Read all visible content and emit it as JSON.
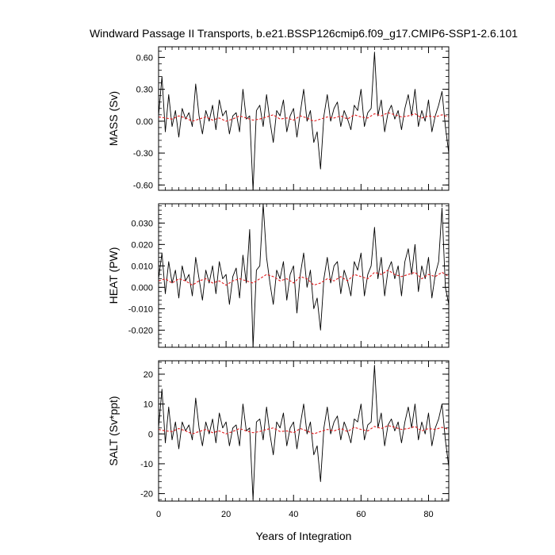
{
  "figure": {
    "title": "Windward Passage II Transports, b.e21.BSSP126cmip6.f09_g17.CMIP6-SSP1-2.6.101",
    "xlabel": "Years of Integration"
  },
  "chart_data": [
    {
      "type": "line",
      "ylabel": "MASS (Sv)",
      "xlim": [
        0,
        86
      ],
      "ylim": [
        -0.65,
        0.7
      ],
      "yticks": [
        "0.60",
        "0.30",
        "0.00",
        "-0.30",
        "-0.60"
      ],
      "ytick_values": [
        0.6,
        0.3,
        0.0,
        -0.3,
        -0.6
      ],
      "xticks": [
        0,
        20,
        40,
        60,
        80
      ],
      "series": [
        {
          "color": "#000000",
          "x": [
            0,
            1,
            2,
            3,
            4,
            5,
            6,
            7,
            8,
            9,
            10,
            11,
            12,
            13,
            14,
            15,
            16,
            17,
            18,
            19,
            20,
            21,
            22,
            23,
            24,
            25,
            26,
            27,
            28,
            29,
            30,
            31,
            32,
            33,
            34,
            35,
            36,
            37,
            38,
            39,
            40,
            41,
            42,
            43,
            44,
            45,
            46,
            47,
            48,
            49,
            50,
            51,
            52,
            53,
            54,
            55,
            56,
            57,
            58,
            59,
            60,
            61,
            62,
            63,
            64,
            65,
            66,
            67,
            68,
            69,
            70,
            71,
            72,
            73,
            74,
            75,
            76,
            77,
            78,
            79,
            80,
            81,
            82,
            83,
            84,
            85,
            86
          ],
          "y": [
            0.05,
            0.42,
            -0.1,
            0.25,
            -0.05,
            0.1,
            -0.15,
            0.12,
            0.02,
            0.08,
            -0.05,
            0.35,
            0.05,
            -0.12,
            0.1,
            0.0,
            0.15,
            -0.08,
            0.2,
            0.05,
            0.1,
            -0.12,
            0.05,
            0.08,
            -0.1,
            0.3,
            0.02,
            0.05,
            -0.65,
            0.1,
            0.15,
            -0.05,
            0.25,
            0.0,
            -0.2,
            0.1,
            0.05,
            0.2,
            -0.1,
            0.05,
            0.12,
            -0.15,
            0.08,
            0.3,
            0.0,
            0.1,
            -0.2,
            -0.1,
            -0.45,
            0.05,
            0.25,
            0.0,
            0.12,
            0.18,
            -0.05,
            0.1,
            0.02,
            -0.08,
            0.15,
            0.1,
            0.3,
            -0.05,
            0.08,
            0.12,
            0.65,
            0.05,
            0.2,
            -0.1,
            0.08,
            0.15,
            0.02,
            0.1,
            -0.08,
            0.12,
            0.25,
            0.05,
            0.3,
            -0.05,
            0.1,
            0.0,
            0.2,
            -0.1,
            0.05,
            0.15,
            0.28,
            -0.05,
            -0.3
          ]
        },
        {
          "color": "#e41a1c",
          "x": [
            0,
            2,
            4,
            6,
            8,
            10,
            12,
            14,
            16,
            18,
            20,
            22,
            24,
            26,
            28,
            30,
            32,
            34,
            36,
            38,
            40,
            42,
            44,
            46,
            48,
            50,
            52,
            54,
            56,
            58,
            60,
            62,
            64,
            66,
            68,
            70,
            72,
            74,
            76,
            78,
            80,
            82,
            84,
            86
          ],
          "y": [
            0.04,
            0.03,
            0.02,
            0.05,
            0.03,
            0.0,
            0.02,
            0.04,
            0.01,
            0.03,
            0.0,
            0.02,
            0.05,
            0.03,
            0.01,
            0.02,
            0.04,
            0.06,
            0.02,
            0.03,
            0.01,
            0.05,
            0.03,
            0.0,
            0.02,
            0.04,
            0.03,
            0.05,
            0.02,
            0.06,
            0.04,
            0.03,
            0.07,
            0.05,
            0.08,
            0.06,
            0.04,
            0.05,
            0.07,
            0.03,
            0.05,
            0.04,
            0.06,
            0.04
          ]
        }
      ]
    },
    {
      "type": "line",
      "ylabel": "HEAT (PW)",
      "xlim": [
        0,
        86
      ],
      "ylim": [
        -0.028,
        0.039
      ],
      "yticks": [
        "0.030",
        "0.020",
        "0.010",
        "0.000",
        "-0.010",
        "-0.020"
      ],
      "ytick_values": [
        0.03,
        0.02,
        0.01,
        0.0,
        -0.01,
        -0.02
      ],
      "xticks": [
        0,
        20,
        40,
        60,
        80
      ],
      "series": [
        {
          "color": "#000000",
          "x": [
            0,
            1,
            2,
            3,
            4,
            5,
            6,
            7,
            8,
            9,
            10,
            11,
            12,
            13,
            14,
            15,
            16,
            17,
            18,
            19,
            20,
            21,
            22,
            23,
            24,
            25,
            26,
            27,
            28,
            29,
            30,
            31,
            32,
            33,
            34,
            35,
            36,
            37,
            38,
            39,
            40,
            41,
            42,
            43,
            44,
            45,
            46,
            47,
            48,
            49,
            50,
            51,
            52,
            53,
            54,
            55,
            56,
            57,
            58,
            59,
            60,
            61,
            62,
            63,
            64,
            65,
            66,
            67,
            68,
            69,
            70,
            71,
            72,
            73,
            74,
            75,
            76,
            77,
            78,
            79,
            80,
            81,
            82,
            83,
            84,
            85,
            86
          ],
          "y": [
            0.004,
            0.016,
            -0.003,
            0.012,
            0.002,
            0.008,
            -0.005,
            0.01,
            0.003,
            0.006,
            -0.004,
            0.014,
            0.004,
            -0.006,
            0.008,
            0.002,
            0.01,
            -0.003,
            0.012,
            0.004,
            0.006,
            -0.008,
            0.005,
            0.009,
            -0.005,
            0.015,
            0.002,
            0.027,
            -0.028,
            0.008,
            0.01,
            0.039,
            0.014,
            0.002,
            -0.008,
            0.008,
            0.004,
            0.012,
            -0.006,
            0.006,
            0.01,
            -0.012,
            0.006,
            0.016,
            0.0,
            0.008,
            -0.01,
            -0.005,
            -0.02,
            0.004,
            0.014,
            0.002,
            0.01,
            0.012,
            -0.003,
            0.008,
            0.003,
            -0.004,
            0.012,
            0.008,
            0.016,
            -0.004,
            0.006,
            0.01,
            0.028,
            0.004,
            0.014,
            -0.004,
            0.008,
            0.012,
            0.004,
            0.01,
            -0.004,
            0.012,
            0.018,
            0.006,
            0.02,
            -0.002,
            0.01,
            0.004,
            0.014,
            -0.005,
            0.006,
            0.012,
            0.037,
            0.0,
            -0.008
          ]
        },
        {
          "color": "#e41a1c",
          "x": [
            0,
            2,
            4,
            6,
            8,
            10,
            12,
            14,
            16,
            18,
            20,
            22,
            24,
            26,
            28,
            30,
            32,
            34,
            36,
            38,
            40,
            42,
            44,
            46,
            48,
            50,
            52,
            54,
            56,
            58,
            60,
            62,
            64,
            66,
            68,
            70,
            72,
            74,
            76,
            78,
            80,
            82,
            84,
            86
          ],
          "y": [
            0.003,
            0.004,
            0.002,
            0.004,
            0.003,
            0.001,
            0.003,
            0.004,
            0.002,
            0.003,
            0.001,
            0.003,
            0.004,
            0.003,
            0.002,
            0.004,
            0.006,
            0.005,
            0.003,
            0.004,
            0.002,
            0.005,
            0.004,
            0.001,
            0.002,
            0.004,
            0.003,
            0.005,
            0.003,
            0.006,
            0.005,
            0.004,
            0.007,
            0.006,
            0.008,
            0.006,
            0.005,
            0.006,
            0.007,
            0.004,
            0.006,
            0.005,
            0.007,
            0.005
          ]
        }
      ]
    },
    {
      "type": "line",
      "ylabel": "SALT (Sv*ppt)",
      "xlim": [
        0,
        86
      ],
      "ylim": [
        -22.5,
        24.5
      ],
      "yticks": [
        "20",
        "10",
        "0",
        "-10",
        "-20"
      ],
      "ytick_values": [
        20,
        10,
        0,
        -10,
        -20
      ],
      "xticks": [
        0,
        20,
        40,
        60,
        80
      ],
      "series": [
        {
          "color": "#000000",
          "x": [
            0,
            1,
            2,
            3,
            4,
            5,
            6,
            7,
            8,
            9,
            10,
            11,
            12,
            13,
            14,
            15,
            16,
            17,
            18,
            19,
            20,
            21,
            22,
            23,
            24,
            25,
            26,
            27,
            28,
            29,
            30,
            31,
            32,
            33,
            34,
            35,
            36,
            37,
            38,
            39,
            40,
            41,
            42,
            43,
            44,
            45,
            46,
            47,
            48,
            49,
            50,
            51,
            52,
            53,
            54,
            55,
            56,
            57,
            58,
            59,
            60,
            61,
            62,
            63,
            64,
            65,
            66,
            67,
            68,
            69,
            70,
            71,
            72,
            73,
            74,
            75,
            76,
            77,
            78,
            79,
            80,
            81,
            82,
            83,
            84,
            85,
            86
          ],
          "y": [
            2,
            15,
            -3,
            9,
            -2,
            4,
            -5,
            4,
            1,
            3,
            -2,
            12,
            2,
            -4,
            4,
            0,
            5,
            -3,
            7,
            2,
            4,
            -4,
            2,
            3,
            -4,
            10,
            1,
            2,
            -22,
            4,
            5,
            -2,
            9,
            0,
            -7,
            4,
            2,
            7,
            -4,
            2,
            4,
            -5,
            3,
            10,
            0,
            4,
            -7,
            -4,
            -16,
            2,
            9,
            0,
            4,
            6,
            -2,
            4,
            1,
            -3,
            5,
            4,
            10,
            -2,
            3,
            4,
            23,
            2,
            7,
            -4,
            3,
            5,
            1,
            4,
            -3,
            4,
            9,
            2,
            10,
            -2,
            4,
            0,
            7,
            -4,
            2,
            5,
            10,
            -2,
            -11
          ]
        },
        {
          "color": "#e41a1c",
          "x": [
            0,
            2,
            4,
            6,
            8,
            10,
            12,
            14,
            16,
            18,
            20,
            22,
            24,
            26,
            28,
            30,
            32,
            34,
            36,
            38,
            40,
            42,
            44,
            46,
            48,
            50,
            52,
            54,
            56,
            58,
            60,
            62,
            64,
            66,
            68,
            70,
            72,
            74,
            76,
            78,
            80,
            82,
            84,
            86
          ],
          "y": [
            1.5,
            1.0,
            0.8,
            1.8,
            1.0,
            0.0,
            0.8,
            1.5,
            0.4,
            1.0,
            0.0,
            0.8,
            1.8,
            1.0,
            0.4,
            0.8,
            1.5,
            2.0,
            0.8,
            1.0,
            0.4,
            1.8,
            1.0,
            0.0,
            0.8,
            1.5,
            1.0,
            1.8,
            0.8,
            2.2,
            1.5,
            1.0,
            2.5,
            1.8,
            2.8,
            2.2,
            1.5,
            1.8,
            2.5,
            1.0,
            1.8,
            1.5,
            2.2,
            1.5
          ]
        }
      ]
    }
  ]
}
